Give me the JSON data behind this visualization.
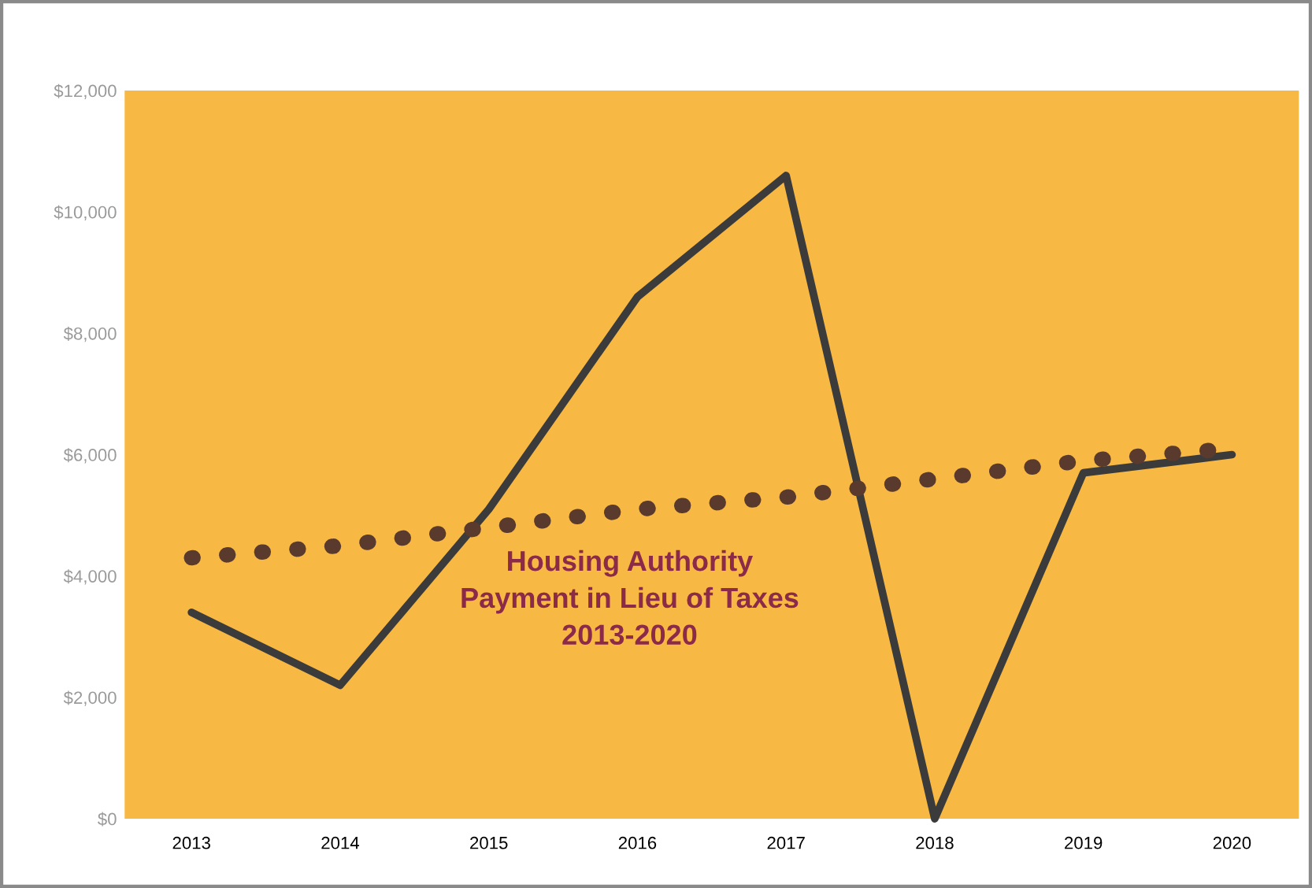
{
  "chart_data": {
    "type": "line",
    "categories": [
      "2013",
      "2014",
      "2015",
      "2016",
      "2017",
      "2018",
      "2019",
      "2020"
    ],
    "series": [
      {
        "color": "#3b3b3b",
        "values": [
          3400,
          2200,
          5100,
          8600,
          10600,
          0,
          5700,
          6000
        ],
        "line_style": "solid"
      },
      {
        "color": "#5b3a2e",
        "values": [
          4300,
          4500,
          4800,
          5100,
          5300,
          5600,
          5900,
          6100
        ],
        "line_style": "dotted"
      }
    ],
    "ylim": [
      0,
      12000
    ],
    "yticks": [
      {
        "value": 0,
        "label": "$0"
      },
      {
        "value": 2000,
        "label": "$2,000"
      },
      {
        "value": 4000,
        "label": "$4,000"
      },
      {
        "value": 6000,
        "label": "$6,000"
      },
      {
        "value": 8000,
        "label": "$8,000"
      },
      {
        "value": 10000,
        "label": "$10,000"
      },
      {
        "value": 12000,
        "label": "$12,000"
      }
    ],
    "grid": false,
    "legend": false,
    "marker": "none",
    "annotations": [
      "Housing Authority\nPayment in Lieu of Taxes\n2013-2020"
    ]
  }
}
